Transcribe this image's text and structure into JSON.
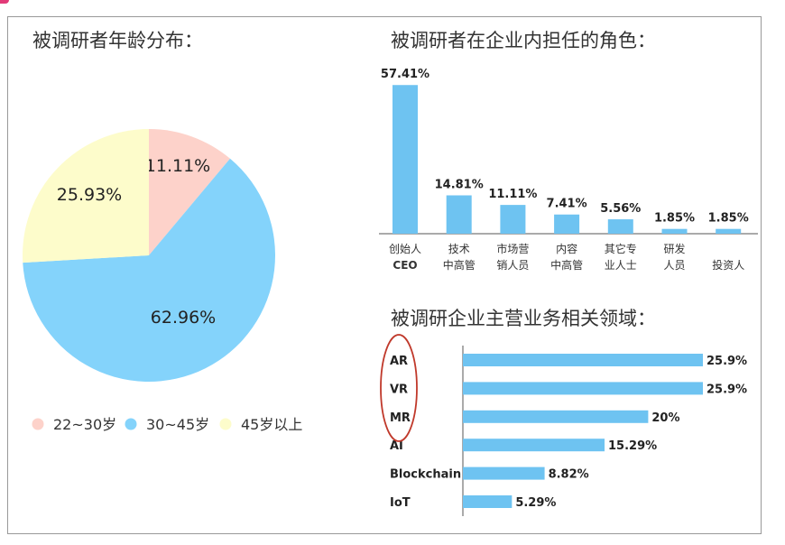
{
  "chart_data": [
    {
      "type": "pie",
      "title": "被调研者年龄分布：",
      "categories": [
        "22~30岁",
        "30~45岁",
        "45岁以上"
      ],
      "values": [
        11.11,
        62.96,
        25.93
      ],
      "labels": [
        "11.11%",
        "62.96%",
        "25.93%"
      ],
      "colors": [
        "#fdd2ca",
        "#84d3fb",
        "#fdfccb"
      ],
      "legend": "bottom"
    },
    {
      "type": "bar",
      "title": "被调研者在企业内担任的角色：",
      "categories": [
        [
          "创始人",
          "CEO"
        ],
        [
          "技术",
          "中高管"
        ],
        [
          "市场营",
          "销人员"
        ],
        [
          "内容",
          "中高管"
        ],
        [
          "其它专",
          "业人士"
        ],
        [
          "研发",
          "人员"
        ],
        [
          "",
          "投资人"
        ]
      ],
      "values": [
        57.41,
        14.81,
        11.11,
        7.41,
        5.56,
        1.85,
        1.85
      ],
      "labels": [
        "57.41%",
        "14.81%",
        "11.11%",
        "7.41%",
        "5.56%",
        "1.85%",
        "1.85%"
      ],
      "color": "#6ec3f1"
    },
    {
      "type": "bar",
      "orientation": "horizontal",
      "title": "被调研企业主营业务相关领域：",
      "categories": [
        "AR",
        "VR",
        "MR",
        "AI",
        "Blockchain",
        "IoT"
      ],
      "values": [
        25.9,
        25.9,
        20,
        15.29,
        8.82,
        5.29
      ],
      "labels": [
        "25.9%",
        "25.9%",
        "20%",
        "15.29%",
        "8.82%",
        "5.29%"
      ],
      "color": "#6ec3f1",
      "highlight": {
        "categories": [
          "AR",
          "VR",
          "MR"
        ],
        "color": "#c0392b",
        "shape": "ellipse"
      }
    }
  ]
}
